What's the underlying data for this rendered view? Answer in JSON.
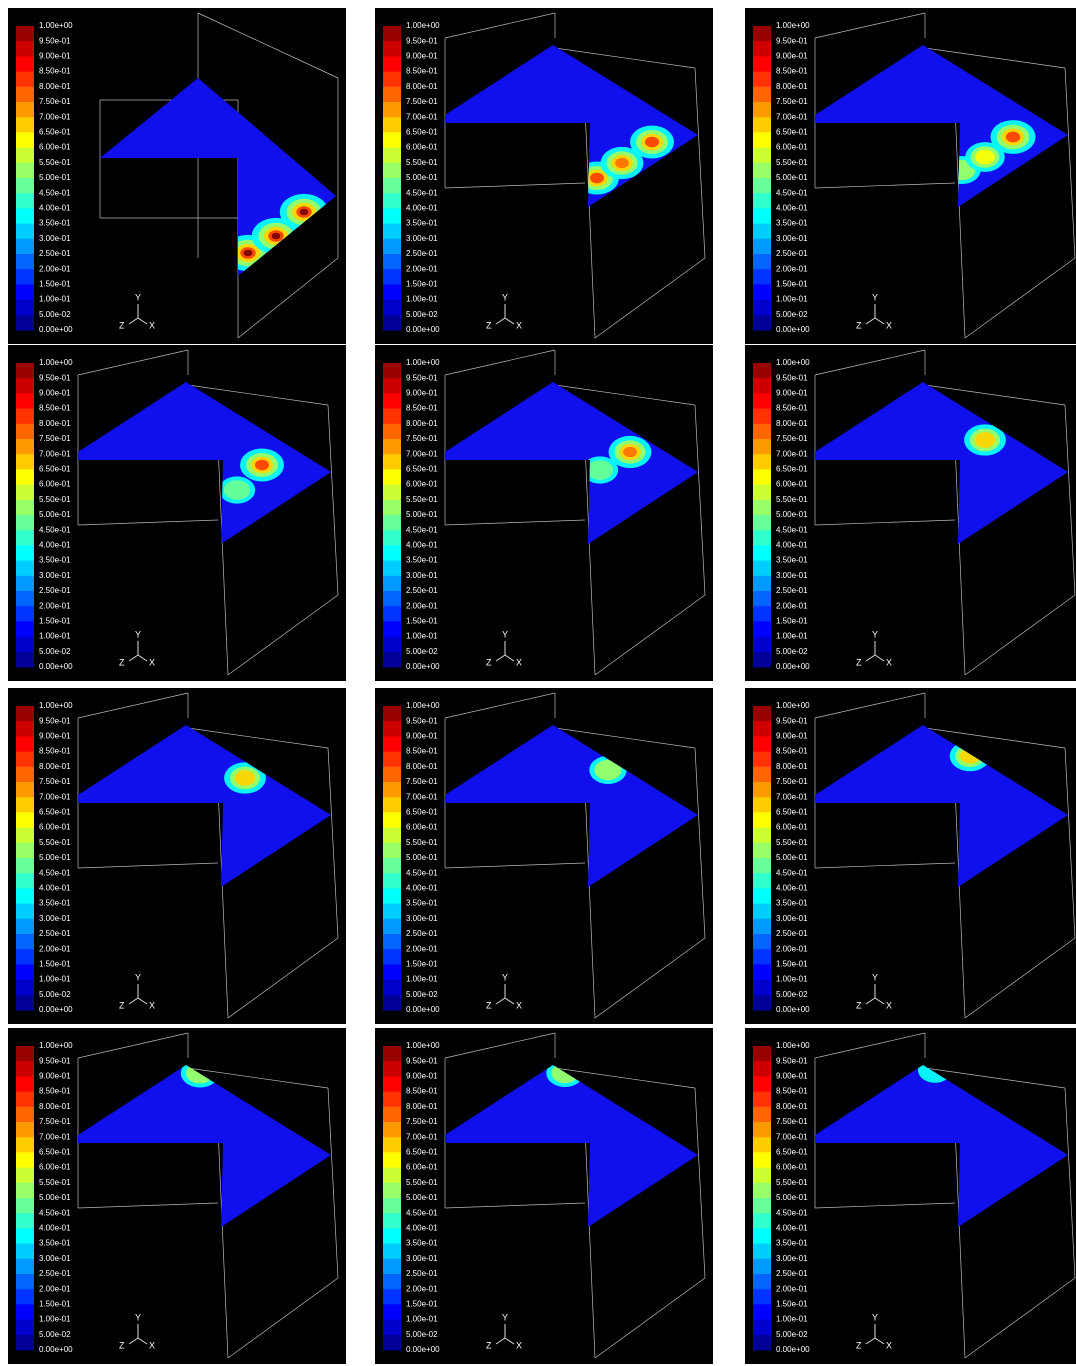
{
  "axis_triad": {
    "y": "Y",
    "z": "Z",
    "x": "X"
  },
  "panels": [
    {
      "colorbar_labels": [
        "1.00e+00",
        "9.50e-01",
        "9.00e-01",
        "8.50e-01",
        "8.00e-01",
        "7.50e-01",
        "7.00e-01",
        "6.50e-01",
        "6.00e-01",
        "5.50e-01",
        "5.00e-01",
        "4.50e-01",
        "4.00e-01",
        "3.50e-01",
        "3.00e-01",
        "2.50e-01",
        "2.00e-01",
        "1.50e-01",
        "1.00e-01",
        "5.00e-02",
        "0.00e+00"
      ]
    },
    {
      "colorbar_labels": [
        "1.00e+00",
        "9.50e-01",
        "9.00e-01",
        "8.50e-01",
        "8.00e-01",
        "7.50e-01",
        "7.00e-01",
        "6.50e-01",
        "6.00e-01",
        "5.50e-01",
        "5.00e-01",
        "4.50e-01",
        "4.00e-01",
        "3.50e-01",
        "3.00e-01",
        "2.50e-01",
        "2.00e-01",
        "1.50e-01",
        "1.00e-01",
        "5.00e-02",
        "0.00e+00"
      ]
    },
    {
      "colorbar_labels": [
        "1.00e+00",
        "9.50e-01",
        "9.00e-01",
        "8.50e-01",
        "8.00e-01",
        "7.50e-01",
        "7.00e-01",
        "6.50e-01",
        "6.00e-01",
        "5.50e-01",
        "5.00e-01",
        "4.50e-01",
        "4.00e-01",
        "3.50e-01",
        "3.00e-01",
        "2.50e-01",
        "2.00e-01",
        "1.50e-01",
        "1.00e-01",
        "5.00e-02",
        "0.00e+00"
      ]
    },
    {
      "colorbar_labels": [
        "1.00e+00",
        "9.50e-01",
        "9.00e-01",
        "8.50e-01",
        "8.00e-01",
        "7.50e-01",
        "7.00e-01",
        "6.50e-01",
        "6.00e-01",
        "5.50e-01",
        "5.00e-01",
        "4.50e-01",
        "4.00e-01",
        "3.50e-01",
        "3.00e-01",
        "2.50e-01",
        "2.00e-01",
        "1.50e-01",
        "1.00e-01",
        "5.00e-02",
        "0.00e+00"
      ]
    },
    {
      "colorbar_labels": [
        "1.00e+00",
        "9.50e-01",
        "9.00e-01",
        "8.50e-01",
        "8.00e-01",
        "7.50e-01",
        "7.00e-01",
        "6.50e-01",
        "6.00e-01",
        "5.50e-01",
        "5.00e-01",
        "4.50e-01",
        "4.00e-01",
        "3.50e-01",
        "3.00e-01",
        "2.50e-01",
        "2.00e-01",
        "1.50e-01",
        "1.00e-01",
        "5.00e-02",
        "0.00e+00"
      ]
    },
    {
      "colorbar_labels": [
        "1.00e+00",
        "9.50e-01",
        "9.00e-01",
        "8.50e-01",
        "8.00e-01",
        "7.50e-01",
        "7.00e-01",
        "6.50e-01",
        "6.00e-01",
        "5.50e-01",
        "5.00e-01",
        "4.50e-01",
        "4.00e-01",
        "3.50e-01",
        "3.00e-01",
        "2.50e-01",
        "2.00e-01",
        "1.50e-01",
        "1.00e-01",
        "5.00e-02",
        "0.00e+00"
      ]
    },
    {
      "colorbar_labels": [
        "1.00e+00",
        "9.50e-01",
        "9.00e-01",
        "8.50e-01",
        "8.00e-01",
        "7.50e-01",
        "7.00e-01",
        "6.50e-01",
        "6.00e-01",
        "5.50e-01",
        "5.00e-01",
        "4.50e-01",
        "4.00e-01",
        "3.50e-01",
        "3.00e-01",
        "2.50e-01",
        "2.00e-01",
        "1.50e-01",
        "1.00e-01",
        "5.00e-02",
        "0.00e+00"
      ]
    },
    {
      "colorbar_labels": [
        "1.00e+00",
        "9.50e-01",
        "9.00e-01",
        "8.50e-01",
        "8.00e-01",
        "7.50e-01",
        "7.00e-01",
        "6.50e-01",
        "6.00e-01",
        "5.50e-01",
        "5.00e-01",
        "4.50e-01",
        "4.00e-01",
        "3.50e-01",
        "3.00e-01",
        "2.50e-01",
        "2.00e-01",
        "1.50e-01",
        "1.00e-01",
        "5.00e-02",
        "0.00e+00"
      ]
    },
    {
      "colorbar_labels": [
        "1.00e+00",
        "9.50e-01",
        "9.00e-01",
        "8.50e-01",
        "8.00e-01",
        "7.50e-01",
        "7.00e-01",
        "6.50e-01",
        "6.00e-01",
        "5.50e-01",
        "5.00e-01",
        "4.50e-01",
        "4.00e-01",
        "3.50e-01",
        "3.00e-01",
        "2.50e-01",
        "2.00e-01",
        "1.50e-01",
        "1.00e-01",
        "5.00e-02",
        "0.00e+00"
      ]
    },
    {
      "colorbar_labels": [
        "1.00e+00",
        "9.50e-01",
        "9.00e-01",
        "8.50e-01",
        "8.00e-01",
        "7.50e-01",
        "7.00e-01",
        "6.50e-01",
        "6.00e-01",
        "5.50e-01",
        "5.00e-01",
        "4.50e-01",
        "4.00e-01",
        "3.50e-01",
        "3.00e-01",
        "2.50e-01",
        "2.00e-01",
        "1.50e-01",
        "1.00e-01",
        "5.00e-02",
        "0.00e+00"
      ]
    },
    {
      "colorbar_labels": [
        "1.00e+00",
        "9.50e-01",
        "9.00e-01",
        "8.50e-01",
        "8.00e-01",
        "7.50e-01",
        "7.00e-01",
        "6.50e-01",
        "6.00e-01",
        "5.50e-01",
        "5.00e-01",
        "4.50e-01",
        "4.00e-01",
        "3.50e-01",
        "3.00e-01",
        "2.50e-01",
        "2.00e-01",
        "1.50e-01",
        "1.00e-01",
        "5.00e-02",
        "0.00e+00"
      ]
    },
    {
      "colorbar_labels": [
        "1.00e+00",
        "9.50e-01",
        "9.00e-01",
        "8.50e-01",
        "8.00e-01",
        "7.50e-01",
        "7.00e-01",
        "6.50e-01",
        "6.00e-01",
        "5.50e-01",
        "5.00e-01",
        "4.50e-01",
        "4.00e-01",
        "3.50e-01",
        "3.00e-01",
        "2.50e-01",
        "2.00e-01",
        "1.50e-01",
        "1.00e-01",
        "5.00e-02",
        "0.00e+00"
      ]
    }
  ]
}
